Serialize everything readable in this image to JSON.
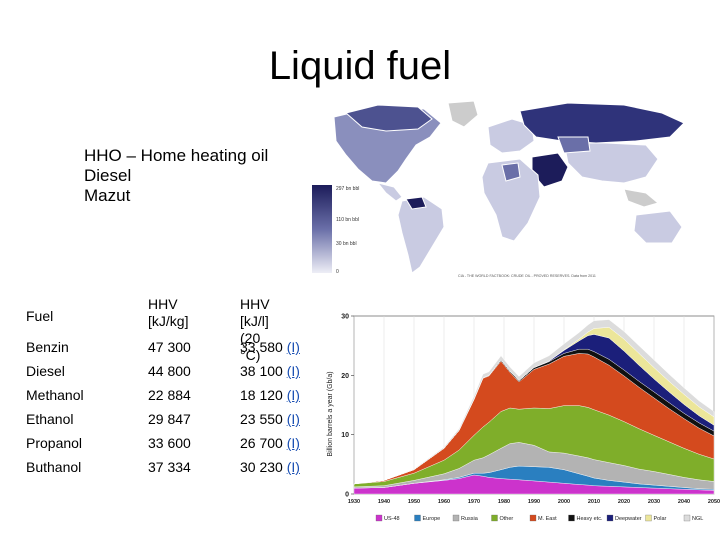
{
  "slide": {
    "title": "Liquid fuel",
    "bullets": [
      "HHO – Home heating oil",
      "Diesel",
      "Mazut"
    ]
  },
  "map": {
    "legend": [
      "297 bn bbl",
      "110 bn bbl",
      "30 bn bbl",
      "0"
    ],
    "caption": "CIA - THE WORLD FACTBOOK: CRUDE OIL - PROVED RESERVES. Data from 2011",
    "colors": {
      "dark": "#1c1c5a",
      "mid": "#6a6fa8",
      "light": "#c9cbe2",
      "nodata": "#cccccc"
    }
  },
  "fuel_table": {
    "headers": [
      "Fuel",
      "HHV\n[kJ/kg]",
      "HHV\n[kJ/l] (20 °C)"
    ],
    "rows": [
      {
        "fuel": "Benzin",
        "hhv_kg": "47 300",
        "hhv_l": "33 580",
        "ref": "(I)"
      },
      {
        "fuel": "Diesel",
        "hhv_kg": "44 800",
        "hhv_l": "38 100",
        "ref": "(I)"
      },
      {
        "fuel": "Methanol",
        "hhv_kg": "22 884",
        "hhv_l": "18 120",
        "ref": "(I)"
      },
      {
        "fuel": "Ethanol",
        "hhv_kg": "29 847",
        "hhv_l": "23 550",
        "ref": "(I)"
      },
      {
        "fuel": "Propanol",
        "hhv_kg": "33 600",
        "hhv_l": "26 700",
        "ref": "(I)"
      },
      {
        "fuel": "Buthanol",
        "hhv_kg": "37 334",
        "hhv_l": "30 230",
        "ref": "(I)"
      }
    ]
  },
  "chart_data": {
    "type": "area",
    "ylabel": "Billion barrels a year (Gb/a)",
    "ylim": [
      0,
      30
    ],
    "yticks": [
      0,
      10,
      20,
      30
    ],
    "xlim": [
      1930,
      2050
    ],
    "xticks": [
      1930,
      1940,
      1950,
      1960,
      1970,
      1980,
      1990,
      2000,
      2010,
      2020,
      2030,
      2040,
      2050
    ],
    "x": [
      1930,
      1940,
      1950,
      1960,
      1965,
      1970,
      1973,
      1975,
      1979,
      1982,
      1985,
      1990,
      1995,
      2000,
      2005,
      2008,
      2010,
      2015,
      2020,
      2025,
      2030,
      2035,
      2040,
      2045,
      2050
    ],
    "series": [
      {
        "name": "US-48",
        "color": "#cc33cc",
        "values": [
          1.0,
          1.1,
          1.8,
          2.3,
          2.6,
          3.2,
          3.0,
          2.8,
          2.6,
          2.5,
          2.4,
          2.2,
          2.0,
          1.8,
          1.6,
          1.5,
          1.4,
          1.3,
          1.2,
          1.1,
          1.0,
          0.9,
          0.8,
          0.7,
          0.6
        ]
      },
      {
        "name": "Europe",
        "color": "#2a7fc0",
        "values": [
          0.0,
          0.0,
          0.0,
          0.1,
          0.2,
          0.3,
          0.5,
          0.8,
          1.5,
          2.0,
          2.3,
          2.4,
          2.5,
          2.3,
          1.8,
          1.5,
          1.3,
          1.0,
          0.8,
          0.6,
          0.5,
          0.4,
          0.3,
          0.2,
          0.2
        ]
      },
      {
        "name": "Russia",
        "color": "#b3b3b3",
        "values": [
          0.2,
          0.3,
          0.5,
          1.0,
          1.5,
          2.2,
          2.6,
          3.0,
          3.6,
          4.0,
          4.0,
          3.6,
          2.6,
          2.8,
          3.0,
          3.1,
          3.1,
          3.0,
          2.8,
          2.5,
          2.3,
          2.0,
          1.7,
          1.5,
          1.3
        ]
      },
      {
        "name": "Other",
        "color": "#7fae2a",
        "values": [
          0.5,
          0.7,
          1.2,
          2.3,
          3.1,
          4.2,
          5.2,
          5.5,
          6.2,
          6.0,
          5.6,
          6.3,
          7.3,
          8.0,
          8.5,
          8.5,
          8.4,
          8.0,
          7.4,
          6.8,
          6.1,
          5.5,
          4.9,
          4.3,
          3.8
        ]
      },
      {
        "name": "M. East",
        "color": "#d44a1e",
        "values": [
          0.0,
          0.2,
          0.6,
          2.0,
          3.3,
          6.0,
          8.2,
          7.8,
          8.5,
          6.0,
          4.6,
          6.5,
          7.5,
          8.3,
          8.8,
          9.0,
          8.9,
          8.4,
          7.7,
          7.0,
          6.3,
          5.6,
          5.0,
          4.4,
          3.9
        ]
      },
      {
        "name": "Heavy etc.",
        "color": "#111111",
        "values": [
          0.0,
          0.0,
          0.0,
          0.0,
          0.0,
          0.1,
          0.1,
          0.1,
          0.2,
          0.2,
          0.2,
          0.3,
          0.4,
          0.5,
          0.7,
          0.8,
          0.9,
          1.0,
          1.0,
          1.0,
          1.0,
          1.0,
          0.9,
          0.9,
          0.8
        ]
      },
      {
        "name": "Deepwater",
        "color": "#1b1f7a",
        "values": [
          0.0,
          0.0,
          0.0,
          0.0,
          0.0,
          0.0,
          0.0,
          0.0,
          0.0,
          0.0,
          0.0,
          0.0,
          0.1,
          0.5,
          1.4,
          2.3,
          2.9,
          3.6,
          3.2,
          2.7,
          2.2,
          1.8,
          1.5,
          1.2,
          1.0
        ]
      },
      {
        "name": "Polar",
        "color": "#ece69a",
        "values": [
          0.0,
          0.0,
          0.0,
          0.0,
          0.0,
          0.0,
          0.0,
          0.0,
          0.0,
          0.0,
          0.0,
          0.0,
          0.0,
          0.1,
          0.3,
          0.6,
          1.0,
          1.8,
          2.0,
          2.0,
          1.9,
          1.8,
          1.7,
          1.5,
          1.4
        ]
      },
      {
        "name": "NGL",
        "color": "#dcdcdc",
        "values": [
          0.0,
          0.0,
          0.1,
          0.2,
          0.3,
          0.5,
          0.6,
          0.6,
          0.7,
          0.7,
          0.7,
          0.8,
          0.9,
          1.0,
          1.1,
          1.2,
          1.3,
          1.3,
          1.3,
          1.3,
          1.3,
          1.2,
          1.1,
          1.0,
          0.9
        ]
      }
    ]
  }
}
